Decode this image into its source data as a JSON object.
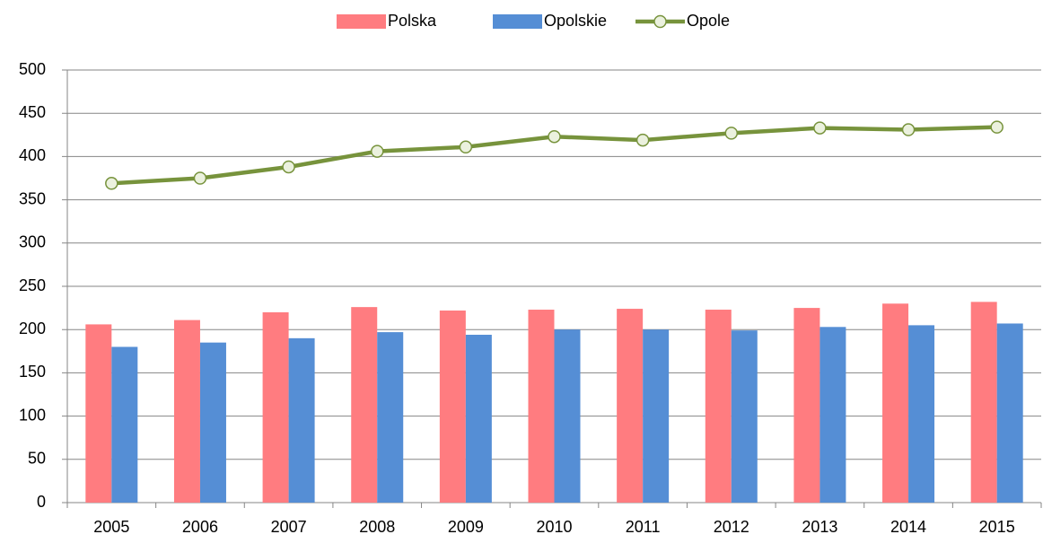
{
  "chart_data": {
    "type": "bar_line",
    "categories": [
      "2005",
      "2006",
      "2007",
      "2008",
      "2009",
      "2010",
      "2011",
      "2012",
      "2013",
      "2014",
      "2015"
    ],
    "series": [
      {
        "name": "Polska",
        "type": "bar",
        "color": "#ff7c80",
        "values": [
          206,
          211,
          220,
          226,
          222,
          223,
          224,
          223,
          225,
          230,
          232
        ]
      },
      {
        "name": "Opolskie",
        "type": "bar",
        "color": "#558ed5",
        "values": [
          180,
          185,
          190,
          197,
          194,
          200,
          200,
          199,
          203,
          205,
          207
        ]
      },
      {
        "name": "Opole",
        "type": "line",
        "color": "#77933c",
        "marker_fill": "#ebf1de",
        "values": [
          369,
          375,
          388,
          406,
          411,
          423,
          419,
          427,
          433,
          431,
          434
        ]
      }
    ],
    "ylim": [
      0,
      500
    ],
    "yticks": [
      0,
      50,
      100,
      150,
      200,
      250,
      300,
      350,
      400,
      450,
      500
    ],
    "grid": true,
    "legend": "top"
  }
}
